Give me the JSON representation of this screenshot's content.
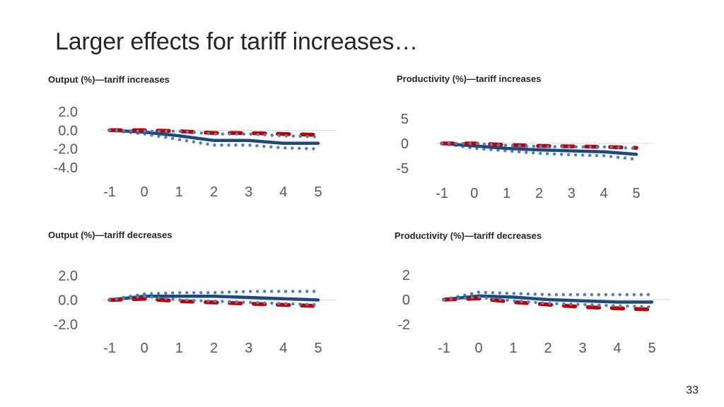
{
  "slide": {
    "title": "Larger effects for tariff increases…",
    "page_number": "33"
  },
  "colors": {
    "solid": "#1f497d",
    "dotted": "#4f81bd",
    "dashed": "#c00000",
    "zero_line": "#d9d9d9"
  },
  "chart_data": [
    {
      "type": "line",
      "title": "Output (%)—tariff increases",
      "categories": [
        "-1",
        "0",
        "1",
        "2",
        "3",
        "4",
        "5"
      ],
      "x": [
        -1,
        0,
        1,
        2,
        3,
        4,
        5
      ],
      "ylim": [
        -4.0,
        2.0
      ],
      "yticks": [
        "2.0",
        "0.0",
        "-2.0",
        "-4.0"
      ],
      "series": [
        {
          "style": "dotted",
          "values": [
            0.0,
            -0.4,
            -1.0,
            -1.6,
            -1.6,
            -1.9,
            -2.0
          ]
        },
        {
          "style": "solid",
          "values": [
            0.0,
            -0.2,
            -0.6,
            -1.1,
            -1.1,
            -1.4,
            -1.4
          ]
        },
        {
          "style": "dashed",
          "values": [
            0.0,
            0.0,
            -0.1,
            -0.3,
            -0.3,
            -0.4,
            -0.5
          ]
        },
        {
          "style": "dotted",
          "values": [
            0.0,
            -0.1,
            -0.1,
            -0.4,
            -0.4,
            -0.6,
            -0.7
          ]
        }
      ]
    },
    {
      "type": "line",
      "title": "Productivity (%)—tariff increases",
      "categories": [
        "-1",
        "0",
        "1",
        "2",
        "3",
        "4",
        "5"
      ],
      "x": [
        -1,
        0,
        1,
        2,
        3,
        4,
        5
      ],
      "ylim": [
        -5,
        5
      ],
      "yticks": [
        "5",
        "0",
        "-5"
      ],
      "series": [
        {
          "style": "dotted",
          "values": [
            0.0,
            -1.0,
            -1.5,
            -2.0,
            -2.3,
            -2.5,
            -3.2
          ]
        },
        {
          "style": "solid",
          "values": [
            0.0,
            -0.5,
            -1.0,
            -1.3,
            -1.5,
            -1.7,
            -2.2
          ]
        },
        {
          "style": "dashed",
          "values": [
            0.0,
            0.0,
            -0.3,
            -0.5,
            -0.6,
            -0.7,
            -0.9
          ]
        },
        {
          "style": "dotted",
          "values": [
            0.0,
            0.0,
            -0.4,
            -0.6,
            -0.7,
            -0.7,
            -1.0
          ]
        }
      ]
    },
    {
      "type": "line",
      "title": "Output (%)—tariff decreases",
      "categories": [
        "-1",
        "0",
        "1",
        "2",
        "3",
        "4",
        "5"
      ],
      "x": [
        -1,
        0,
        1,
        2,
        3,
        4,
        5
      ],
      "ylim": [
        -2.0,
        2.0
      ],
      "yticks": [
        "2.0",
        "0.0",
        "-2.0"
      ],
      "series": [
        {
          "style": "dotted",
          "values": [
            0.0,
            0.5,
            0.6,
            0.6,
            0.7,
            0.7,
            0.7
          ]
        },
        {
          "style": "solid",
          "values": [
            0.0,
            0.3,
            0.3,
            0.3,
            0.2,
            0.1,
            0.0
          ]
        },
        {
          "style": "dashed",
          "values": [
            0.0,
            0.1,
            -0.1,
            -0.2,
            -0.3,
            -0.4,
            -0.5
          ]
        },
        {
          "style": "dotted",
          "values": [
            0.0,
            0.3,
            0.0,
            -0.1,
            -0.2,
            -0.3,
            -0.4
          ]
        }
      ]
    },
    {
      "type": "line",
      "title": "Productivity (%)—tariff decreases",
      "categories": [
        "-1",
        "0",
        "1",
        "2",
        "3",
        "4",
        "5"
      ],
      "x": [
        -1,
        0,
        1,
        2,
        3,
        4,
        5
      ],
      "ylim": [
        -2,
        2
      ],
      "yticks": [
        "2",
        "0",
        "-2"
      ],
      "series": [
        {
          "style": "dotted",
          "values": [
            0.0,
            0.6,
            0.5,
            0.4,
            0.4,
            0.4,
            0.4
          ]
        },
        {
          "style": "solid",
          "values": [
            0.0,
            0.3,
            0.2,
            0.0,
            -0.1,
            -0.2,
            -0.2
          ]
        },
        {
          "style": "dashed",
          "values": [
            0.0,
            0.1,
            -0.2,
            -0.4,
            -0.6,
            -0.7,
            -0.8
          ]
        },
        {
          "style": "dotted",
          "values": [
            0.0,
            0.2,
            -0.1,
            -0.3,
            -0.4,
            -0.5,
            -0.6
          ]
        }
      ]
    }
  ]
}
